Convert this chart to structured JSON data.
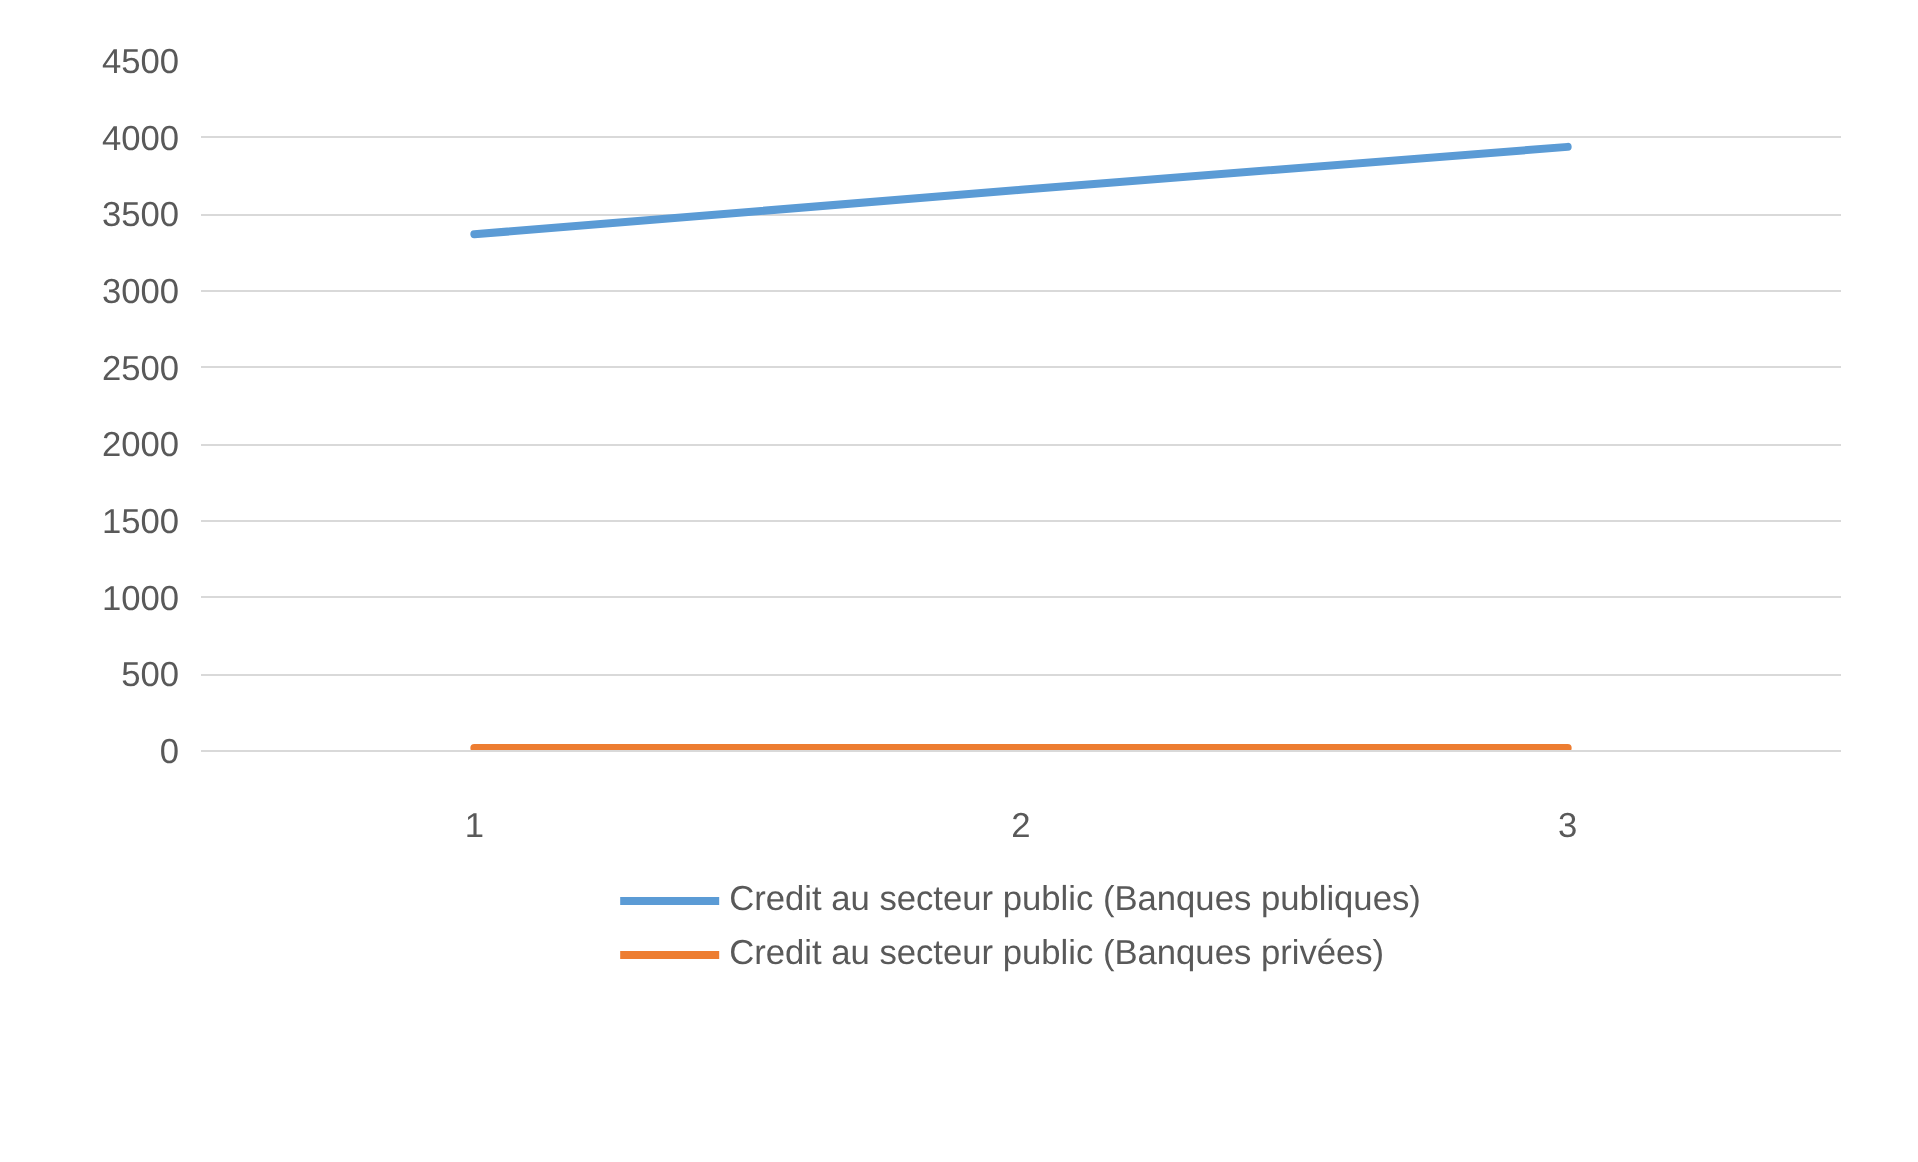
{
  "chart_data": {
    "type": "line",
    "categories": [
      "1",
      "2",
      "3"
    ],
    "series": [
      {
        "name": "Credit au secteur public (Banques publiques)",
        "color": "#5b9bd5",
        "values": [
          3370,
          3660,
          3940
        ]
      },
      {
        "name": "Credit au secteur public (Banques privées)",
        "color": "#ed7d31",
        "values": [
          20,
          20,
          20
        ]
      }
    ],
    "ylim": [
      0,
      4500
    ],
    "yticks": [
      0,
      500,
      1000,
      1500,
      2000,
      2500,
      3000,
      3500,
      4000,
      4500
    ],
    "grid": "y",
    "legend": "bottom",
    "marker": "none",
    "line_style": "solid"
  }
}
